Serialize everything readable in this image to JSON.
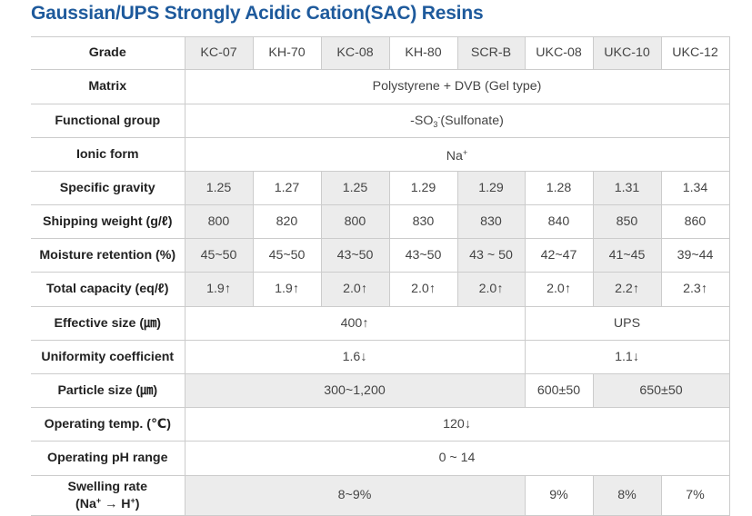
{
  "title": "Gaussian/UPS Strongly Acidic Cation(SAC) Resins",
  "grades": [
    "KC-07",
    "KH-70",
    "KC-08",
    "KH-80",
    "SCR-B",
    "UKC-08",
    "UKC-10",
    "UKC-12"
  ],
  "rows": {
    "grade": {
      "label": "Grade"
    },
    "matrix": {
      "label": "Matrix",
      "value": "Polystyrene + DVB (Gel type)"
    },
    "functional_group": {
      "label": "Functional group",
      "prefix": "-SO",
      "sub": "3",
      "sup": "-",
      "suffix": "(Sulfonate)"
    },
    "ionic_form": {
      "label": "Ionic form",
      "base": "Na",
      "sup": "+"
    },
    "specific_gravity": {
      "label": "Specific gravity",
      "values": [
        "1.25",
        "1.27",
        "1.25",
        "1.29",
        "1.29",
        "1.28",
        "1.31",
        "1.34"
      ]
    },
    "shipping_weight": {
      "label": "Shipping weight (g/ℓ)",
      "values": [
        "800",
        "820",
        "800",
        "830",
        "830",
        "840",
        "850",
        "860"
      ]
    },
    "moisture_retention": {
      "label": "Moisture retention (%)",
      "values": [
        "45~50",
        "45~50",
        "43~50",
        "43~50",
        "43 ~ 50",
        "42~47",
        "41~45",
        "39~44"
      ]
    },
    "total_capacity": {
      "label": "Total capacity (eq/ℓ)",
      "values": [
        "1.9↑",
        "1.9↑",
        "2.0↑",
        "2.0↑",
        "2.0↑",
        "2.0↑",
        "2.2↑",
        "2.3↑"
      ]
    },
    "effective_size": {
      "label": "Effective size (㎛)",
      "value_a": "400↑",
      "value_b": "UPS"
    },
    "uniformity": {
      "label": "Uniformity coefficient",
      "value_a": "1.6↓",
      "value_b": "1.1↓"
    },
    "particle_size": {
      "label": "Particle size (㎛)",
      "value_a": "300~1,200",
      "value_b": "600±50",
      "value_c": "650±50"
    },
    "operating_temp": {
      "label": "Operating temp. (℃)",
      "value": "120↓"
    },
    "operating_ph": {
      "label": "Operating pH range",
      "value": "0 ~ 14"
    },
    "swelling": {
      "label_line1": "Swelling rate",
      "label_pre": "(Na",
      "label_sup1": "+",
      "label_mid": " → H",
      "label_sup2": "+",
      "label_post": ")",
      "value_a": "8~9%",
      "value_b": "9%",
      "value_c": "8%",
      "value_d": "7%"
    }
  }
}
